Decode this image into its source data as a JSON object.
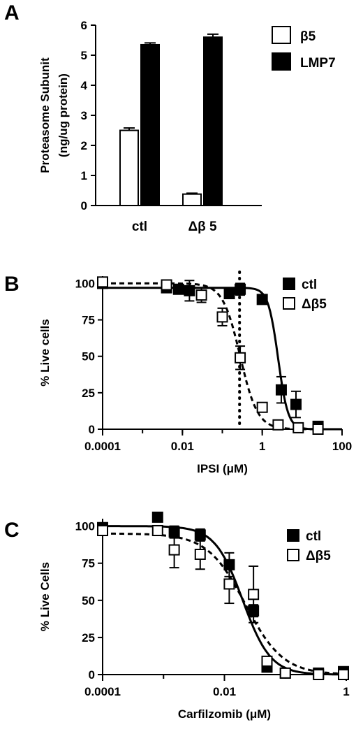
{
  "figure": {
    "panels": [
      "A",
      "B",
      "C"
    ]
  },
  "chart_data": [
    {
      "panel": "A",
      "type": "bar",
      "categories": [
        "ctl",
        "Δβ 5"
      ],
      "series": [
        {
          "name": "β5",
          "values": [
            2.5,
            0.38
          ],
          "errors": [
            0.08,
            0.03
          ],
          "fill": "#ffffff"
        },
        {
          "name": "LMP7",
          "values": [
            5.35,
            5.6
          ],
          "errors": [
            0.06,
            0.1
          ],
          "fill": "#000000"
        }
      ],
      "ylabel": "Proteasome Subunit\n(ng/ug protein)",
      "ylim": [
        0,
        6
      ],
      "yticks": [
        "0",
        "1",
        "2",
        "3",
        "4",
        "5",
        "6"
      ],
      "legend_position": "top-right"
    },
    {
      "panel": "B",
      "type": "scatter",
      "xscale": "log",
      "xlim": [
        0.0001,
        100
      ],
      "ylim": [
        0,
        105
      ],
      "xticks": [
        "0.0001",
        "0.01",
        "1",
        "100"
      ],
      "yticks": [
        "0",
        "25",
        "50",
        "75",
        "100"
      ],
      "xlabel": "IPSI (μM)",
      "ylabel": "% Live cells",
      "reference_line_x": 0.27,
      "legend_position": "top-right",
      "series": [
        {
          "name": "ctl",
          "marker": "filled-square",
          "line": "solid",
          "x": [
            0.0001,
            0.004,
            0.008,
            0.015,
            0.15,
            0.28,
            1.0,
            3.0,
            7.0,
            25.0
          ],
          "y": [
            100,
            97,
            96,
            95,
            93,
            96,
            89,
            27,
            17,
            2
          ],
          "err": [
            2,
            2,
            3,
            7,
            3,
            4,
            3,
            9,
            9,
            2
          ],
          "fit": {
            "top": 97,
            "bottom": 0,
            "ic50": 2.5,
            "hill": 3.5
          }
        },
        {
          "name": "Δβ5",
          "marker": "open-square",
          "line": "dashed",
          "x": [
            0.0001,
            0.004,
            0.03,
            0.1,
            0.28,
            1.0,
            2.5,
            8.0,
            25.0
          ],
          "y": [
            101,
            99,
            92,
            77,
            49,
            15,
            3,
            1,
            0
          ],
          "err": [
            2,
            2,
            5,
            6,
            8,
            2,
            2,
            1,
            1
          ],
          "fit": {
            "top": 100,
            "bottom": 0,
            "ic50": 0.28,
            "hill": 2.0
          }
        }
      ]
    },
    {
      "panel": "C",
      "type": "scatter",
      "xscale": "log",
      "xlim": [
        0.0001,
        1
      ],
      "ylim": [
        0,
        105
      ],
      "xticks": [
        "0.0001",
        "0.01",
        "1"
      ],
      "yticks": [
        "0",
        "25",
        "50",
        "75",
        "100"
      ],
      "xlabel": "Carfilzomib (μM)",
      "ylabel": "% Live Cells",
      "legend_position": "top-right",
      "series": [
        {
          "name": "ctl",
          "marker": "filled-square",
          "line": "solid",
          "x": [
            0.0001,
            0.0008,
            0.0015,
            0.004,
            0.012,
            0.03,
            0.05,
            0.1,
            0.35,
            0.9
          ],
          "y": [
            99,
            106,
            96,
            94,
            74,
            43,
            5,
            1,
            1,
            2
          ],
          "err": [
            3,
            3,
            4,
            4,
            8,
            4,
            2,
            1,
            1,
            1
          ],
          "fit": {
            "top": 100,
            "bottom": 0,
            "ic50": 0.02,
            "hill": 1.9
          }
        },
        {
          "name": "Δβ5",
          "marker": "open-square",
          "line": "dashed",
          "x": [
            0.0001,
            0.0008,
            0.0015,
            0.004,
            0.012,
            0.03,
            0.05,
            0.1,
            0.35,
            0.9
          ],
          "y": [
            97,
            97,
            84,
            81,
            61,
            54,
            9,
            1,
            0,
            0
          ],
          "err": [
            3,
            3,
            12,
            10,
            13,
            19,
            3,
            1,
            1,
            1
          ],
          "fit": {
            "top": 95,
            "bottom": 0,
            "ic50": 0.022,
            "hill": 1.4
          }
        }
      ]
    }
  ]
}
